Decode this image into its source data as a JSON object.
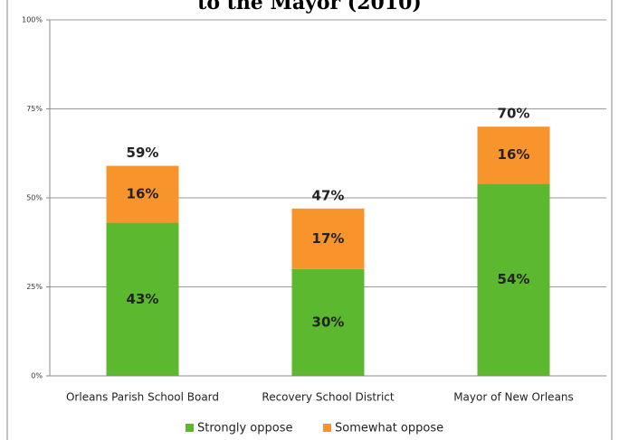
{
  "chart_data": {
    "type": "stacked-bar",
    "title": "to the Mayor (2010)",
    "categories": [
      "Orleans Parish School Board",
      "Recovery School District",
      "Mayor of New Orleans"
    ],
    "series": [
      {
        "name": "Strongly oppose",
        "color": "#5cb82e",
        "values": [
          43,
          30,
          54
        ],
        "value_labels": [
          "43%",
          "30%",
          "54%"
        ]
      },
      {
        "name": "Somewhat oppose",
        "color": "#f7952c",
        "values": [
          16,
          17,
          16
        ],
        "value_labels": [
          "16%",
          "17%",
          "16%"
        ]
      }
    ],
    "totals": [
      59,
      47,
      70
    ],
    "total_labels": [
      "59%",
      "47%",
      "70%"
    ],
    "ylim": [
      0,
      100
    ],
    "yticks": [
      {
        "value": 0,
        "label": "0%"
      },
      {
        "value": 25,
        "label": "25%"
      },
      {
        "value": 50,
        "label": "50%"
      },
      {
        "value": 75,
        "label": "75%"
      },
      {
        "value": 100,
        "label": "100%"
      }
    ],
    "grid": true,
    "legend": "bottom"
  }
}
